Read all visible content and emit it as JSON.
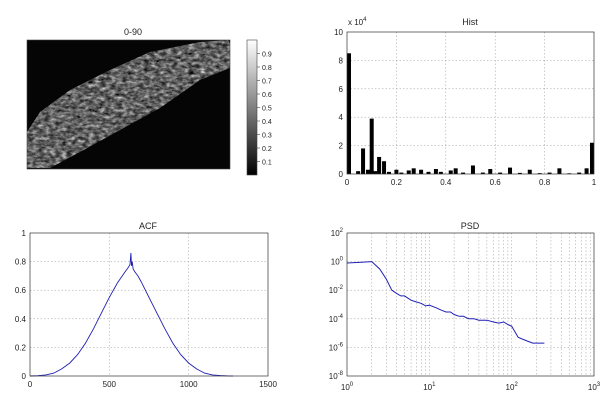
{
  "chart_data": [
    {
      "type": "heatmap",
      "title": "0-90",
      "colorbar_ticks": [
        "0.1",
        "0.2",
        "0.3",
        "0.4",
        "0.5",
        "0.6",
        "0.7",
        "0.8",
        "0.9"
      ],
      "colorbar_range": [
        0,
        1
      ],
      "colormap": "gray",
      "content": "grayscale texture image of a diagonal band running from lower-left to upper-right"
    },
    {
      "type": "bar",
      "title": "Hist",
      "y_exponent": "x 10",
      "y_exponent_power": "4",
      "x": [
        0,
        0.045,
        0.065,
        0.085,
        0.1,
        0.115,
        0.13,
        0.15,
        0.17,
        0.2,
        0.22,
        0.25,
        0.27,
        0.3,
        0.33,
        0.36,
        0.38,
        0.42,
        0.44,
        0.47,
        0.51,
        0.55,
        0.58,
        0.62,
        0.66,
        0.7,
        0.74,
        0.78,
        0.82,
        0.86,
        0.9,
        0.94,
        0.97,
        1.0
      ],
      "values": [
        85000,
        2000,
        18000,
        3000,
        39000,
        2000,
        12000,
        9000,
        1500,
        3000,
        1000,
        2500,
        4000,
        3000,
        1500,
        3500,
        1500,
        2500,
        4000,
        1000,
        6000,
        1000,
        3500,
        1000,
        4500,
        800,
        3000,
        600,
        1000,
        4000,
        500,
        1000,
        4000,
        22000
      ],
      "xlim": [
        0,
        1
      ],
      "ylim": [
        0,
        100000
      ],
      "xticks": [
        "0",
        "0.2",
        "0.4",
        "0.6",
        "0.8",
        "1"
      ],
      "yticks": [
        "0",
        "2",
        "4",
        "6",
        "8",
        "10"
      ],
      "grid": true
    },
    {
      "type": "line",
      "title": "ACF",
      "x": [
        0,
        50,
        100,
        150,
        200,
        250,
        300,
        350,
        400,
        450,
        500,
        550,
        600,
        620,
        630,
        636,
        640,
        644,
        650,
        660,
        680,
        700,
        750,
        800,
        850,
        900,
        950,
        1000,
        1050,
        1100,
        1150,
        1200,
        1250,
        1280
      ],
      "values": [
        0,
        0.002,
        0.008,
        0.02,
        0.05,
        0.09,
        0.15,
        0.23,
        0.33,
        0.44,
        0.55,
        0.65,
        0.73,
        0.76,
        0.78,
        0.86,
        0.77,
        0.8,
        0.75,
        0.73,
        0.7,
        0.66,
        0.55,
        0.44,
        0.33,
        0.23,
        0.15,
        0.09,
        0.05,
        0.02,
        0.008,
        0.003,
        0.001,
        0
      ],
      "xlim": [
        0,
        1500
      ],
      "ylim": [
        0,
        1
      ],
      "xticks": [
        "0",
        "500",
        "1000",
        "1500"
      ],
      "yticks": [
        "0",
        "0.2",
        "0.4",
        "0.6",
        "0.8",
        "1"
      ],
      "grid": true,
      "line_color": "#1f1fb4"
    },
    {
      "type": "line",
      "title": "PSD",
      "scale": "log-log",
      "x": [
        1,
        1.5,
        2,
        2.5,
        3,
        3.5,
        4,
        4.5,
        5,
        6,
        7,
        8,
        9,
        10,
        12,
        14,
        16,
        18,
        20,
        23,
        26,
        30,
        35,
        40,
        50,
        60,
        70,
        80,
        90,
        100,
        120,
        150,
        180,
        200,
        250
      ],
      "values": [
        0.8,
        0.9,
        1,
        0.3,
        0.06,
        0.01,
        0.006,
        0.004,
        0.004,
        0.002,
        0.0015,
        0.0012,
        0.0008,
        0.0009,
        0.0006,
        0.0004,
        0.0003,
        0.0003,
        0.0002,
        0.00015,
        0.00015,
        0.0001,
        0.0001,
        8e-05,
        8e-05,
        6e-05,
        5e-05,
        6e-05,
        4e-05,
        3e-05,
        5e-06,
        3e-06,
        2e-06,
        2e-06,
        2e-06
      ],
      "xlim": [
        1,
        1000
      ],
      "ylim": [
        1e-08,
        100
      ],
      "xtick_base": "10",
      "xtick_powers": [
        "0",
        "1",
        "2",
        "3"
      ],
      "ytick_base": "10",
      "ytick_powers": [
        "2",
        "0",
        "-2",
        "-4",
        "-6",
        "-8"
      ],
      "grid": true,
      "line_color": "#1f1fb4"
    }
  ]
}
